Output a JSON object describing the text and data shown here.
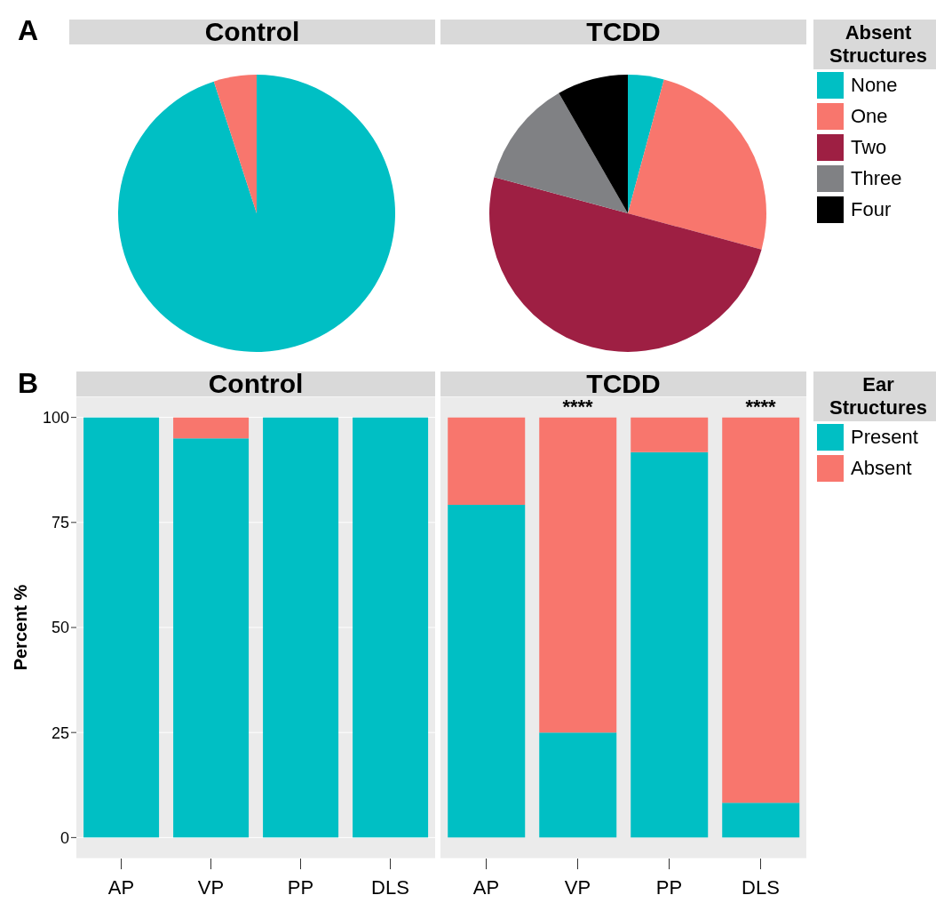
{
  "chart_data": [
    {
      "type": "pie",
      "title": "Control",
      "categories": [
        null,
        null
      ],
      "values": [
        95,
        5
      ],
      "colors": [
        "#00bfc4",
        "#f8766d"
      ],
      "legend": false,
      "annotations": [
        "A"
      ]
    },
    {
      "type": "pie",
      "title": "TCDD",
      "categories": [
        "None",
        "One",
        "Two",
        "Three",
        "Four"
      ],
      "values": [
        4.2,
        25,
        50,
        12.5,
        8.3
      ],
      "colors": [
        "#00bfc4",
        "#f8766d",
        "#9e1f43",
        "#808184",
        "#000000"
      ],
      "legend": "right",
      "legend_title": "Absent Structures"
    },
    {
      "type": "bar",
      "title": "Control",
      "categories": [
        "AP",
        "VP",
        "PP",
        "DLS"
      ],
      "stacked": true,
      "ylabel": "Percent %",
      "ylim": [
        -5,
        105
      ],
      "yticks": [
        0,
        25,
        50,
        75,
        100
      ],
      "grid": "y",
      "legend": false,
      "annotations": [
        "B"
      ],
      "series": [
        {
          "color": "#00bfc4",
          "values": [
            100,
            95,
            100,
            100
          ]
        },
        {
          "color": "#f8766d",
          "values": [
            0,
            5,
            0,
            0
          ]
        }
      ]
    },
    {
      "type": "bar",
      "title": "TCDD",
      "categories": [
        "AP",
        "VP",
        "PP",
        "DLS"
      ],
      "stacked": true,
      "ylim": [
        -5,
        105
      ],
      "yticks": [
        0,
        25,
        50,
        75,
        100
      ],
      "grid": "y",
      "tick_labels": "x",
      "legend": "right",
      "legend_title": "Ear Structures",
      "annotations": [
        {
          "text": "****",
          "x": "VP",
          "y": 100
        },
        {
          "text": "****",
          "x": "DLS",
          "y": 100
        }
      ],
      "series": [
        {
          "name": "Present",
          "color": "#00bfc4",
          "values": [
            79.2,
            25,
            91.7,
            8.3
          ]
        },
        {
          "name": "Absent",
          "color": "#f8766d",
          "values": [
            20.8,
            75,
            8.3,
            91.7
          ]
        }
      ]
    }
  ]
}
